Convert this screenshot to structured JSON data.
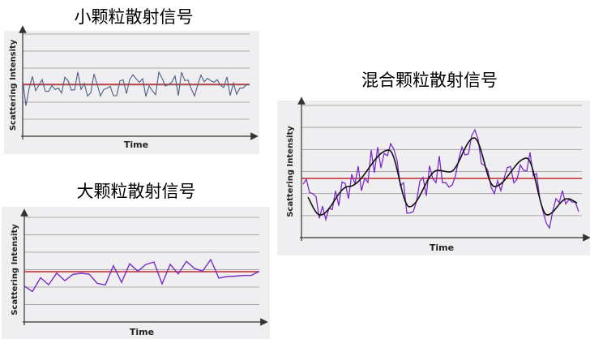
{
  "panels": [
    {
      "title": "小颗粒散射信号",
      "y_label": "Scattering Intensity",
      "x_label": "Time"
    },
    {
      "title": "大颗粒散射信号",
      "y_label": "Scattering Intensity",
      "x_label": "Time"
    },
    {
      "title": "混合颗粒散射信号",
      "y_label": "Scattering Intensity",
      "x_label": "Time"
    }
  ]
}
